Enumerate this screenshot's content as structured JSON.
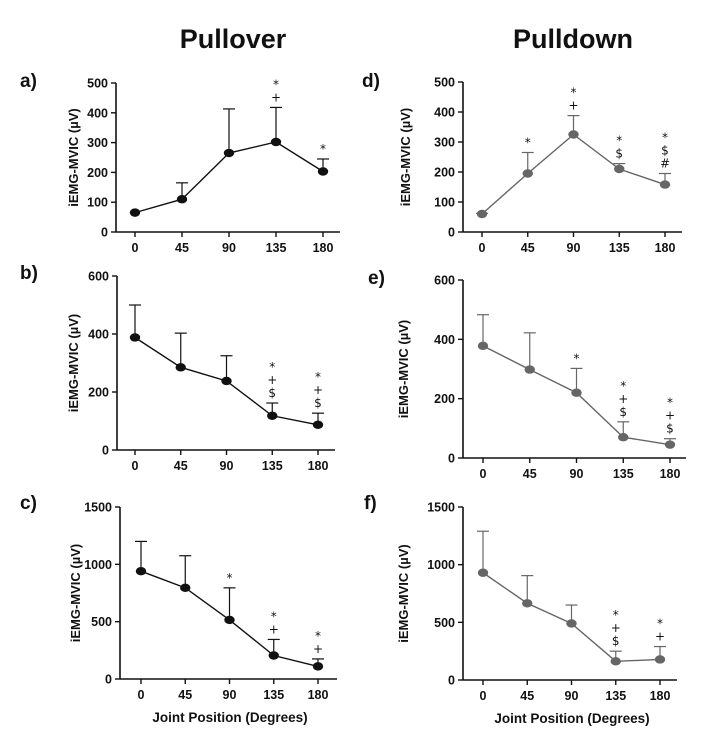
{
  "figure": {
    "column_titles": [
      "Pullover",
      "Pulldown"
    ],
    "xlabel": "Joint Position (Degrees)"
  },
  "chart_data": [
    {
      "id": "a",
      "panel_label": "a)",
      "type": "line",
      "column": "Pullover",
      "color": "#111111",
      "categories": [
        "0",
        "45",
        "90",
        "135",
        "180"
      ],
      "values": [
        65,
        110,
        265,
        302,
        203
      ],
      "error_upper": [
        0,
        165,
        413,
        418,
        245
      ],
      "significance": [
        [],
        [],
        [],
        [
          "*",
          "+"
        ],
        [
          "*"
        ]
      ],
      "ylabel": "iEMG-MVIC (µV)",
      "ylim": [
        0,
        500
      ],
      "yticks": [
        0,
        100,
        200,
        300,
        400,
        500
      ]
    },
    {
      "id": "b",
      "panel_label": "b)",
      "type": "line",
      "column": "Pullover",
      "color": "#111111",
      "categories": [
        "0",
        "45",
        "90",
        "135",
        "180"
      ],
      "values": [
        388,
        285,
        238,
        118,
        87
      ],
      "error_upper": [
        500,
        403,
        325,
        162,
        127
      ],
      "significance": [
        [],
        [],
        [],
        [
          "*",
          "+",
          "$"
        ],
        [
          "*",
          "+",
          "$"
        ]
      ],
      "ylabel": "iEMG-MVIC (µV)",
      "ylim": [
        0,
        600
      ],
      "yticks": [
        0,
        200,
        400,
        600
      ]
    },
    {
      "id": "c",
      "panel_label": "c)",
      "type": "line",
      "column": "Pullover",
      "color": "#111111",
      "categories": [
        "0",
        "45",
        "90",
        "135",
        "180"
      ],
      "values": [
        940,
        795,
        515,
        205,
        110
      ],
      "error_upper": [
        1200,
        1075,
        795,
        345,
        175
      ],
      "significance": [
        [],
        [],
        [
          "*"
        ],
        [
          "*",
          "+"
        ],
        [
          "*",
          "+"
        ]
      ],
      "ylabel": "iEMG-MVIC (µV)",
      "ylim": [
        0,
        1500
      ],
      "yticks": [
        0,
        500,
        1000,
        1500
      ]
    },
    {
      "id": "d",
      "panel_label": "d)",
      "type": "line",
      "column": "Pulldown",
      "color": "#666666",
      "categories": [
        "0",
        "45",
        "90",
        "135",
        "180"
      ],
      "values": [
        60,
        195,
        325,
        210,
        158
      ],
      "error_upper": [
        62,
        265,
        388,
        228,
        195
      ],
      "significance": [
        [],
        [
          "*"
        ],
        [
          "*",
          "+"
        ],
        [
          "*",
          "$"
        ],
        [
          "*",
          "$",
          "#"
        ]
      ],
      "ylabel": "iEMG-MVIC (µV)",
      "ylim": [
        0,
        500
      ],
      "yticks": [
        0,
        100,
        200,
        300,
        400,
        500
      ]
    },
    {
      "id": "e",
      "panel_label": "e)",
      "type": "line",
      "column": "Pulldown",
      "color": "#666666",
      "categories": [
        "0",
        "45",
        "90",
        "135",
        "180"
      ],
      "values": [
        378,
        298,
        220,
        70,
        45
      ],
      "error_upper": [
        483,
        422,
        302,
        122,
        65
      ],
      "significance": [
        [],
        [],
        [
          "*"
        ],
        [
          "*",
          "+",
          "$"
        ],
        [
          "*",
          "+",
          "$"
        ]
      ],
      "ylabel": "iEMG-MVIC (µV)",
      "ylim": [
        0,
        600
      ],
      "yticks": [
        0,
        200,
        400,
        600
      ]
    },
    {
      "id": "f",
      "panel_label": "f)",
      "type": "line",
      "column": "Pulldown",
      "color": "#666666",
      "categories": [
        "0",
        "45",
        "90",
        "135",
        "180"
      ],
      "values": [
        930,
        665,
        490,
        162,
        178
      ],
      "error_upper": [
        1290,
        905,
        650,
        250,
        290
      ],
      "significance": [
        [],
        [],
        [],
        [
          "*",
          "+",
          "$"
        ],
        [
          "*",
          "+"
        ]
      ],
      "ylabel": "iEMG-MVIC (µV)",
      "ylim": [
        0,
        1500
      ],
      "yticks": [
        0,
        500,
        1000,
        1500
      ]
    }
  ]
}
